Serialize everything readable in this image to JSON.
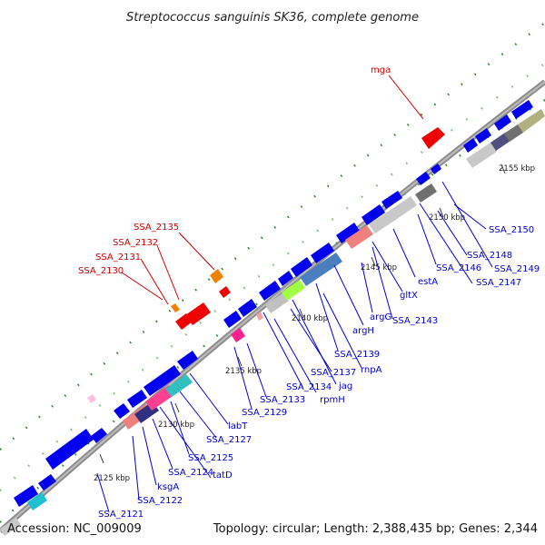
{
  "title": "Streptococcus sanguinis SK36, complete genome",
  "footer": {
    "accession": "Accession: NC_009009",
    "summary": "Topology: circular; Length: 2,388,435 bp; Genes: 2,344"
  },
  "colors": {
    "plus_strand_label": "#cc0000",
    "minus_strand_label": "#0000cc",
    "gene_arrow": "#0000ee",
    "backbone": "#808080",
    "tick": "#007700"
  },
  "scale_ticks": [
    {
      "label": "2125 kbp"
    },
    {
      "label": "2130 kbp"
    },
    {
      "label": "2135 kbp"
    },
    {
      "label": "2140 kbp"
    },
    {
      "label": "2145 kbp"
    },
    {
      "label": "2150 kbp"
    },
    {
      "label": "2155 kbp"
    }
  ],
  "labels_plus_strand": [
    {
      "text": "mga"
    },
    {
      "text": "SSA_2135"
    },
    {
      "text": "SSA_2132"
    },
    {
      "text": "SSA_2131"
    },
    {
      "text": "SSA_2130"
    }
  ],
  "labels_minus_strand": [
    {
      "text": "SSA_2150"
    },
    {
      "text": "SSA_2148"
    },
    {
      "text": "SSA_2149"
    },
    {
      "text": "SSA_2146"
    },
    {
      "text": "SSA_2147"
    },
    {
      "text": "estA"
    },
    {
      "text": "gltX"
    },
    {
      "text": "argG"
    },
    {
      "text": "SSA_2143"
    },
    {
      "text": "argH"
    },
    {
      "text": "SSA_2139"
    },
    {
      "text": "rnpA"
    },
    {
      "text": "SSA_2137"
    },
    {
      "text": "jag"
    },
    {
      "text": "SSA_2134"
    },
    {
      "text": "rpmH"
    },
    {
      "text": "SSA_2133"
    },
    {
      "text": "SSA_2129"
    },
    {
      "text": "labT"
    },
    {
      "text": "SSA_2127"
    },
    {
      "text": "SSA_2125"
    },
    {
      "text": "tatD"
    },
    {
      "text": "SSA_2124"
    },
    {
      "text": "ksgA"
    },
    {
      "text": "SSA_2122"
    },
    {
      "text": "SSA_2121"
    }
  ]
}
